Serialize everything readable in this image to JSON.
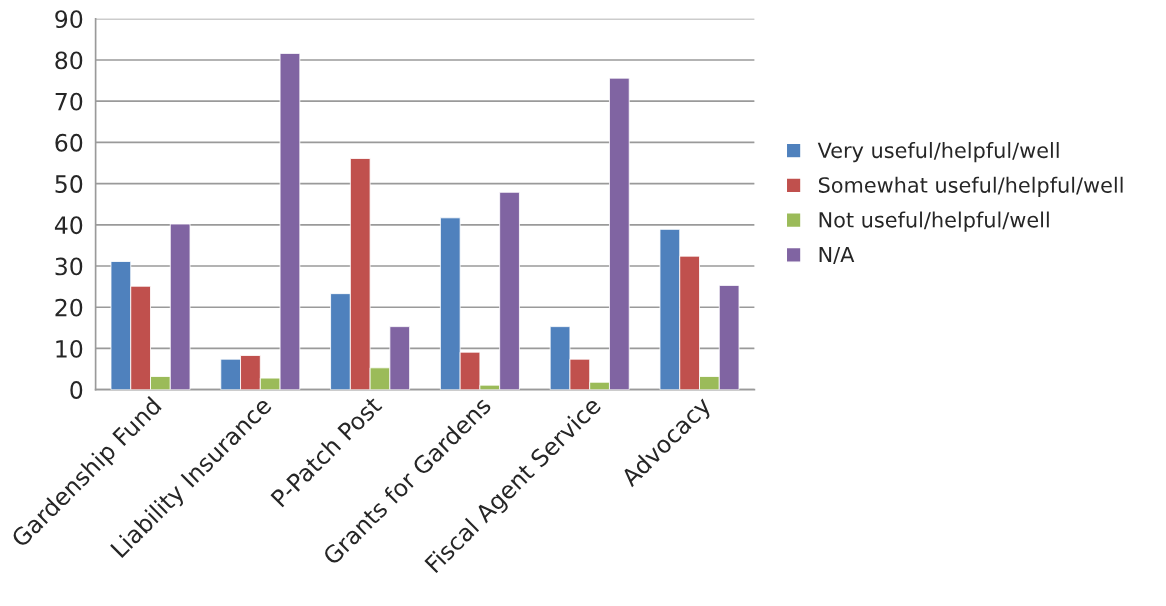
{
  "chart_data": {
    "type": "bar",
    "categories": [
      "Gardenship Fund",
      "Liability Insurance",
      "P-Patch Post",
      "Grants for Gardens",
      "Fiscal Agent Service",
      "Advocacy"
    ],
    "series": [
      {
        "name": "Very useful/helpful/well",
        "color": "#4f81bd",
        "values": [
          31.1,
          7.4,
          23.3,
          41.7,
          15.3,
          38.9
        ]
      },
      {
        "name": "Somewhat useful/helpful/well",
        "color": "#c0504d",
        "values": [
          25.1,
          8.3,
          56.1,
          9.1,
          7.4,
          32.4
        ]
      },
      {
        "name": "Not useful/helpful/well",
        "color": "#9bbb59",
        "values": [
          3.2,
          2.8,
          5.3,
          1.1,
          1.8,
          3.2
        ]
      },
      {
        "name": "N/A",
        "color": "#8064a2",
        "values": [
          40.2,
          81.6,
          15.3,
          47.9,
          75.6,
          25.3
        ]
      }
    ],
    "ylim": [
      0,
      90
    ],
    "yticks": [
      0,
      10,
      20,
      30,
      40,
      50,
      60,
      70,
      80,
      90
    ],
    "grid": "y",
    "legend": "right"
  }
}
